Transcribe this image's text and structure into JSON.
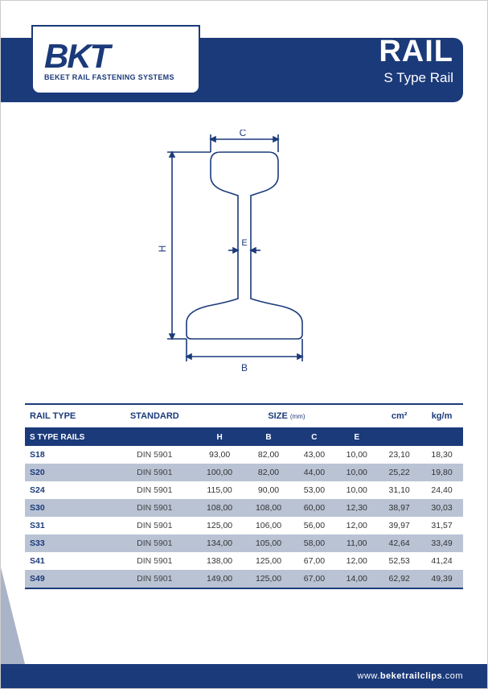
{
  "brand": {
    "logo": "BKT",
    "tagline": "BEKET RAIL FASTENING SYSTEMS"
  },
  "title": {
    "main": "RAIL",
    "sub": "S Type Rail"
  },
  "diagram": {
    "labels": {
      "H": "H",
      "B": "B",
      "C": "C",
      "E": "E"
    },
    "stroke": "#1b3a7a",
    "stroke_width": 1.6
  },
  "table": {
    "headers": {
      "rail_type": "RAIL TYPE",
      "standard": "STANDARD",
      "size": "SIZE",
      "size_unit": "(mm)",
      "cm2": "cm²",
      "kgm": "kg/m"
    },
    "subhead": {
      "group": "S TYPE RAILS",
      "H": "H",
      "B": "B",
      "C": "C",
      "E": "E"
    },
    "rows": [
      {
        "name": "S18",
        "std": "DIN 5901",
        "H": "93,00",
        "B": "82,00",
        "C": "43,00",
        "E": "10,00",
        "cm2": "23,10",
        "kgm": "18,30"
      },
      {
        "name": "S20",
        "std": "DIN 5901",
        "H": "100,00",
        "B": "82,00",
        "C": "44,00",
        "E": "10,00",
        "cm2": "25,22",
        "kgm": "19,80"
      },
      {
        "name": "S24",
        "std": "DIN 5901",
        "H": "115,00",
        "B": "90,00",
        "C": "53,00",
        "E": "10,00",
        "cm2": "31,10",
        "kgm": "24,40"
      },
      {
        "name": "S30",
        "std": "DIN 5901",
        "H": "108,00",
        "B": "108,00",
        "C": "60,00",
        "E": "12,30",
        "cm2": "38,97",
        "kgm": "30,03"
      },
      {
        "name": "S31",
        "std": "DIN 5901",
        "H": "125,00",
        "B": "106,00",
        "C": "56,00",
        "E": "12,00",
        "cm2": "39,97",
        "kgm": "31,57"
      },
      {
        "name": "S33",
        "std": "DIN 5901",
        "H": "134,00",
        "B": "105,00",
        "C": "58,00",
        "E": "11,00",
        "cm2": "42,64",
        "kgm": "33,49"
      },
      {
        "name": "S41",
        "std": "DIN 5901",
        "H": "138,00",
        "B": "125,00",
        "C": "67,00",
        "E": "12,00",
        "cm2": "52,53",
        "kgm": "41,24"
      },
      {
        "name": "S49",
        "std": "DIN 5901",
        "H": "149,00",
        "B": "125,00",
        "C": "67,00",
        "E": "14,00",
        "cm2": "62,92",
        "kgm": "49,39"
      }
    ],
    "row_alt_bg": "#b9c3d4",
    "header_border": "#1b3a7a"
  },
  "footer": {
    "prefix": "www.",
    "domain": "beketrailclips",
    "suffix": ".com"
  },
  "colors": {
    "primary": "#1b3a7a",
    "page_bg": "#ffffff",
    "corner": "#a9b4c8"
  }
}
